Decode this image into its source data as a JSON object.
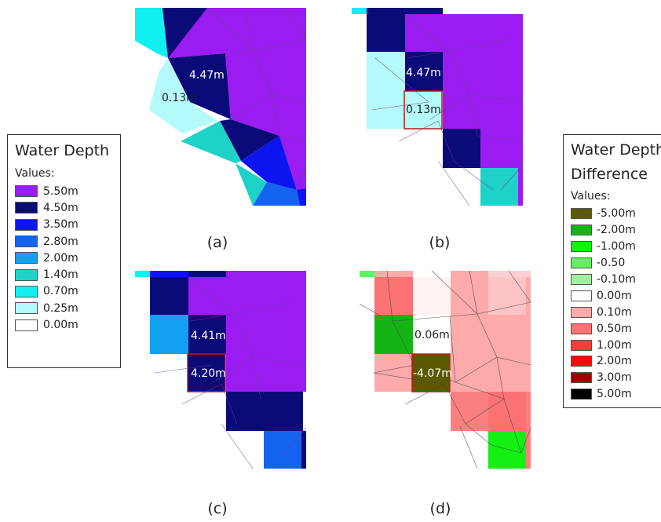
{
  "legend_depth": {
    "title": "Water Depth",
    "values_label": "Values:",
    "items": [
      {
        "label": "5.50m",
        "color": "#9b1cf0"
      },
      {
        "label": "4.50m",
        "color": "#0a0a78"
      },
      {
        "label": "3.50m",
        "color": "#0c14f0"
      },
      {
        "label": "2.80m",
        "color": "#1464f0"
      },
      {
        "label": "2.00m",
        "color": "#12a0f0"
      },
      {
        "label": "1.40m",
        "color": "#1ed2c8"
      },
      {
        "label": "0.70m",
        "color": "#10f0f0"
      },
      {
        "label": "0.25m",
        "color": "#b4fafa"
      },
      {
        "label": "0.00m",
        "color": "#ffffff"
      }
    ]
  },
  "legend_diff": {
    "title_line1": "Water Depth",
    "title_line2": "Difference",
    "values_label": "Values:",
    "items": [
      {
        "label": "-5.00m",
        "color": "#5a5a00"
      },
      {
        "label": "-2.00m",
        "color": "#14b414"
      },
      {
        "label": "-1.00m",
        "color": "#14f014"
      },
      {
        "label": "-0.50",
        "color": "#64f064"
      },
      {
        "label": "-0.10m",
        "color": "#a0f0a0"
      },
      {
        "label": "0.00m",
        "color": "#ffffff"
      },
      {
        "label": "0.10m",
        "color": "#fcaaaa"
      },
      {
        "label": "0.50m",
        "color": "#fa7272"
      },
      {
        "label": "1.00m",
        "color": "#f83c3c"
      },
      {
        "label": "2.00m",
        "color": "#f50a0a"
      },
      {
        "label": "3.00m",
        "color": "#a00000"
      },
      {
        "label": "5.00m",
        "color": "#000000"
      }
    ]
  },
  "panels": {
    "a": {
      "caption": "(a)",
      "label_upper": "4.47m",
      "label_lower": "0.13m"
    },
    "b": {
      "caption": "(b)",
      "label_upper": "4.47m",
      "label_lower": "0.13m"
    },
    "c": {
      "caption": "(c)",
      "label_upper": "4.41m",
      "label_lower": "4.20m"
    },
    "d": {
      "caption": "(d)",
      "label_upper": "0.06m",
      "label_lower": "-4.07m"
    }
  }
}
